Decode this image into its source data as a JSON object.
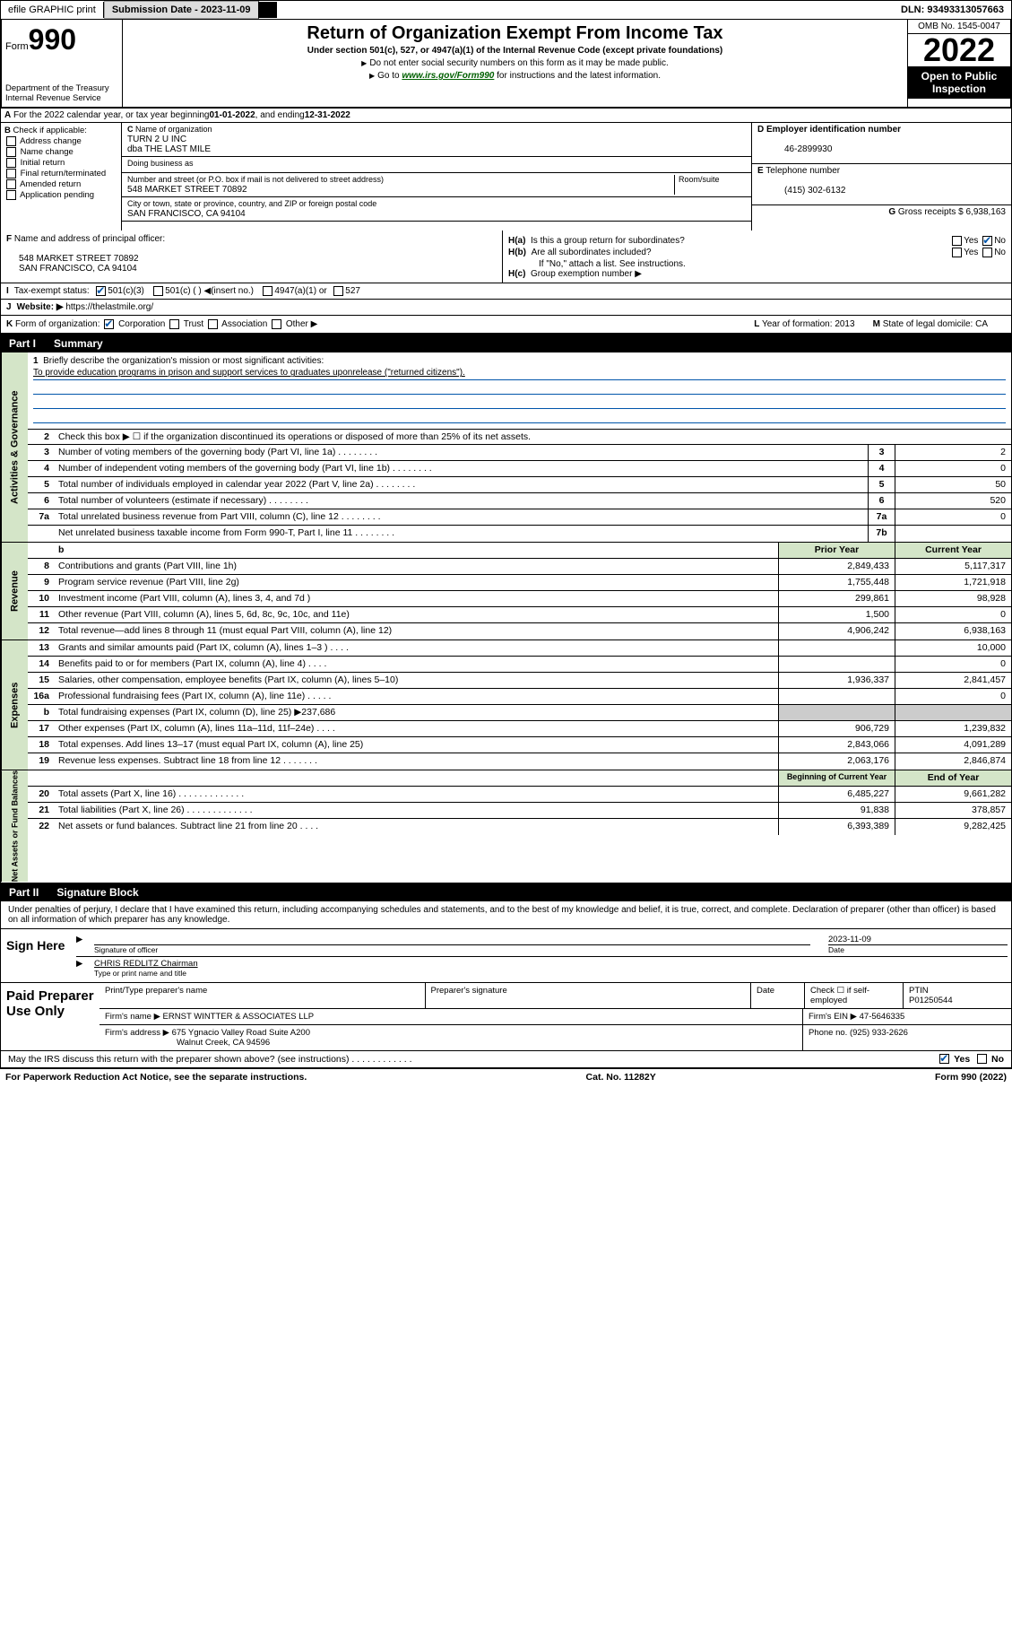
{
  "top": {
    "efile": "efile GRAPHIC print",
    "sub_label": "Submission Date - ",
    "sub_date": "2023-11-09",
    "dln_label": "DLN: ",
    "dln": "93493313057663"
  },
  "header": {
    "form_prefix": "Form",
    "form_num": "990",
    "title": "Return of Organization Exempt From Income Tax",
    "subtitle": "Under section 501(c), 527, or 4947(a)(1) of the Internal Revenue Code (except private foundations)",
    "note1": "Do not enter social security numbers on this form as it may be made public.",
    "note2_pre": "Go to ",
    "note2_link": "www.irs.gov/Form990",
    "note2_post": " for instructions and the latest information.",
    "dept": "Department of the Treasury",
    "irs": "Internal Revenue Service",
    "omb": "OMB No. 1545-0047",
    "year": "2022",
    "open": "Open to Public Inspection"
  },
  "A": {
    "text": "For the 2022 calendar year, or tax year beginning ",
    "begin": "01-01-2022",
    "mid": " , and ending ",
    "end": "12-31-2022"
  },
  "B": {
    "label": "Check if applicable:",
    "items": [
      "Address change",
      "Name change",
      "Initial return",
      "Final return/terminated",
      "Amended return",
      "Application pending"
    ]
  },
  "C": {
    "name_lbl": "Name of organization",
    "name": "TURN 2 U INC",
    "dba": "dba THE LAST MILE",
    "dba_lbl": "Doing business as",
    "addr_lbl": "Number and street (or P.O. box if mail is not delivered to street address)",
    "room_lbl": "Room/suite",
    "addr": "548 MARKET STREET 70892",
    "city_lbl": "City or town, state or province, country, and ZIP or foreign postal code",
    "city": "SAN FRANCISCO, CA  94104"
  },
  "D": {
    "lbl": "Employer identification number",
    "val": "46-2899930"
  },
  "E": {
    "lbl": "Telephone number",
    "val": "(415) 302-6132"
  },
  "G": {
    "lbl": "Gross receipts $",
    "val": "6,938,163"
  },
  "F": {
    "lbl": "Name and address of principal officer:",
    "line1": "548 MARKET STREET 70892",
    "line2": "SAN FRANCISCO, CA  94104"
  },
  "H": {
    "a": "Is this a group return for subordinates?",
    "b": "Are all subordinates included?",
    "b_note": "If \"No,\" attach a list. See instructions.",
    "c": "Group exemption number ▶",
    "yes": "Yes",
    "no": "No"
  },
  "I": {
    "lbl": "Tax-exempt status:",
    "opts": [
      "501(c)(3)",
      "501(c) (   ) ◀(insert no.)",
      "4947(a)(1) or",
      "527"
    ]
  },
  "J": {
    "lbl": "Website: ▶",
    "val": "https://thelastmile.org/"
  },
  "K": {
    "lbl": "Form of organization:",
    "opts": [
      "Corporation",
      "Trust",
      "Association",
      "Other ▶"
    ]
  },
  "L": {
    "lbl": "Year of formation:",
    "val": "2013"
  },
  "M": {
    "lbl": "State of legal domicile:",
    "val": "CA"
  },
  "part1": {
    "num": "Part I",
    "title": "Summary"
  },
  "mission": {
    "lbl": "Briefly describe the organization's mission or most significant activities:",
    "text": "To provide education programs in prison and support services to graduates uponrelease (\"returned citizens\")."
  },
  "summary": {
    "line2": "Check this box ▶ ☐  if the organization discontinued its operations or disposed of more than 25% of its net assets.",
    "rows_gov": [
      {
        "n": "3",
        "d": "Number of voting members of the governing body (Part VI, line 1a)",
        "box": "3",
        "v": "2"
      },
      {
        "n": "4",
        "d": "Number of independent voting members of the governing body (Part VI, line 1b)",
        "box": "4",
        "v": "0"
      },
      {
        "n": "5",
        "d": "Total number of individuals employed in calendar year 2022 (Part V, line 2a)",
        "box": "5",
        "v": "50"
      },
      {
        "n": "6",
        "d": "Total number of volunteers (estimate if necessary)",
        "box": "6",
        "v": "520"
      },
      {
        "n": "7a",
        "d": "Total unrelated business revenue from Part VIII, column (C), line 12",
        "box": "7a",
        "v": "0"
      },
      {
        "n": "",
        "d": "Net unrelated business taxable income from Form 990-T, Part I, line 11",
        "box": "7b",
        "v": ""
      }
    ],
    "col_hdr": {
      "py": "Prior Year",
      "cy": "Current Year"
    },
    "rows_rev": [
      {
        "n": "8",
        "d": "Contributions and grants (Part VIII, line 1h)",
        "py": "2,849,433",
        "cy": "5,117,317"
      },
      {
        "n": "9",
        "d": "Program service revenue (Part VIII, line 2g)",
        "py": "1,755,448",
        "cy": "1,721,918"
      },
      {
        "n": "10",
        "d": "Investment income (Part VIII, column (A), lines 3, 4, and 7d )",
        "py": "299,861",
        "cy": "98,928"
      },
      {
        "n": "11",
        "d": "Other revenue (Part VIII, column (A), lines 5, 6d, 8c, 9c, 10c, and 11e)",
        "py": "1,500",
        "cy": "0"
      },
      {
        "n": "12",
        "d": "Total revenue—add lines 8 through 11 (must equal Part VIII, column (A), line 12)",
        "py": "4,906,242",
        "cy": "6,938,163"
      }
    ],
    "rows_exp": [
      {
        "n": "13",
        "d": "Grants and similar amounts paid (Part IX, column (A), lines 1–3 )   .   .   .   .",
        "py": "",
        "cy": "10,000"
      },
      {
        "n": "14",
        "d": "Benefits paid to or for members (Part IX, column (A), line 4)   .   .   .   .",
        "py": "",
        "cy": "0"
      },
      {
        "n": "15",
        "d": "Salaries, other compensation, employee benefits (Part IX, column (A), lines 5–10)",
        "py": "1,936,337",
        "cy": "2,841,457"
      },
      {
        "n": "16a",
        "d": "Professional fundraising fees (Part IX, column (A), line 11e)   .   .   .   .   .",
        "py": "",
        "cy": "0"
      },
      {
        "n": "b",
        "d": "Total fundraising expenses (Part IX, column (D), line 25) ▶237,686",
        "py": "shade",
        "cy": "shade"
      },
      {
        "n": "17",
        "d": "Other expenses (Part IX, column (A), lines 11a–11d, 11f–24e)   .   .   .   .",
        "py": "906,729",
        "cy": "1,239,832"
      },
      {
        "n": "18",
        "d": "Total expenses. Add lines 13–17 (must equal Part IX, column (A), line 25)",
        "py": "2,843,066",
        "cy": "4,091,289"
      },
      {
        "n": "19",
        "d": "Revenue less expenses. Subtract line 18 from line 12   .   .   .   .   .   .   .",
        "py": "2,063,176",
        "cy": "2,846,874"
      }
    ],
    "col_hdr2": {
      "py": "Beginning of Current Year",
      "cy": "End of Year"
    },
    "rows_net": [
      {
        "n": "20",
        "d": "Total assets (Part X, line 16)   .   .   .   .   .   .   .   .   .   .   .   .   .",
        "py": "6,485,227",
        "cy": "9,661,282"
      },
      {
        "n": "21",
        "d": "Total liabilities (Part X, line 26)   .   .   .   .   .   .   .   .   .   .   .   .   .",
        "py": "91,838",
        "cy": "378,857"
      },
      {
        "n": "22",
        "d": "Net assets or fund balances. Subtract line 21 from line 20   .   .   .   .",
        "py": "6,393,389",
        "cy": "9,282,425"
      }
    ]
  },
  "side_labels": [
    "Activities & Governance",
    "Revenue",
    "Expenses",
    "Net Assets or Fund Balances"
  ],
  "part2": {
    "num": "Part II",
    "title": "Signature Block"
  },
  "sig": {
    "decl": "Under penalties of perjury, I declare that I have examined this return, including accompanying schedules and statements, and to the best of my knowledge and belief, it is true, correct, and complete. Declaration of preparer (other than officer) is based on all information of which preparer has any knowledge.",
    "sign_here": "Sign Here",
    "sig_officer": "Signature of officer",
    "date_lbl": "Date",
    "date": "2023-11-09",
    "name": "CHRIS REDLITZ  Chairman",
    "name_lbl": "Type or print name and title"
  },
  "paid": {
    "lbl": "Paid Preparer Use Only",
    "h": [
      "Print/Type preparer's name",
      "Preparer's signature",
      "Date"
    ],
    "check_lbl": "Check ☐ if self-employed",
    "ptin_lbl": "PTIN",
    "ptin": "P01250544",
    "firm_name_lbl": "Firm's name  ▶",
    "firm_name": "ERNST WINTTER & ASSOCIATES LLP",
    "firm_ein_lbl": "Firm's EIN ▶",
    "firm_ein": "47-5646335",
    "firm_addr_lbl": "Firm's address ▶",
    "firm_addr": "675 Ygnacio Valley Road Suite A200",
    "firm_addr2": "Walnut Creek, CA  94596",
    "phone_lbl": "Phone no.",
    "phone": "(925) 933-2626",
    "may_irs": "May the IRS discuss this return with the preparer shown above? (see instructions)   .   .   .   .   .   .   .   .   .   .   .   ."
  },
  "footer": {
    "pra": "For Paperwork Reduction Act Notice, see the separate instructions.",
    "cat": "Cat. No. 11282Y",
    "form": "Form 990 (2022)"
  }
}
